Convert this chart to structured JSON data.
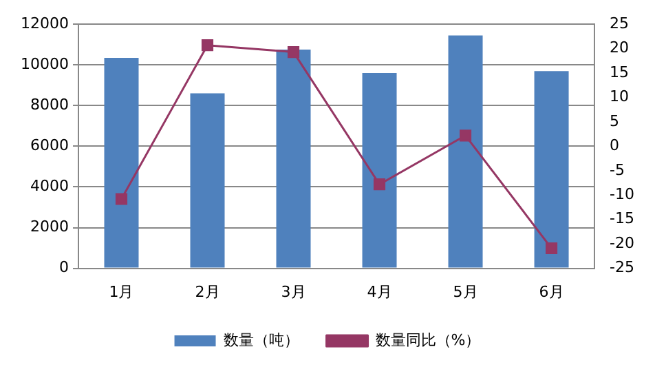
{
  "chart_data": {
    "type": "bar",
    "categories": [
      "1月",
      "2月",
      "3月",
      "4月",
      "5月",
      "6月"
    ],
    "series": [
      {
        "name": "数量（吨）",
        "color": "#4f81bd",
        "values": [
          10350,
          8600,
          10750,
          9600,
          11450,
          9700
        ]
      },
      {
        "name": "数量同比（%）",
        "type": "line",
        "axis": "y2",
        "color": "#953764",
        "marker": "square",
        "values": [
          -10.8,
          20.7,
          19.3,
          -7.8,
          2.2,
          -20.9
        ]
      }
    ],
    "ylim": [
      0,
      12000
    ],
    "yticks": [
      0,
      2000,
      4000,
      6000,
      8000,
      10000,
      12000
    ],
    "y2lim": [
      -25,
      25
    ],
    "y2ticks": [
      -25,
      -20,
      -15,
      -10,
      -5,
      0,
      5,
      10,
      15,
      20,
      25
    ],
    "grid": "y",
    "legend": "bottom"
  }
}
